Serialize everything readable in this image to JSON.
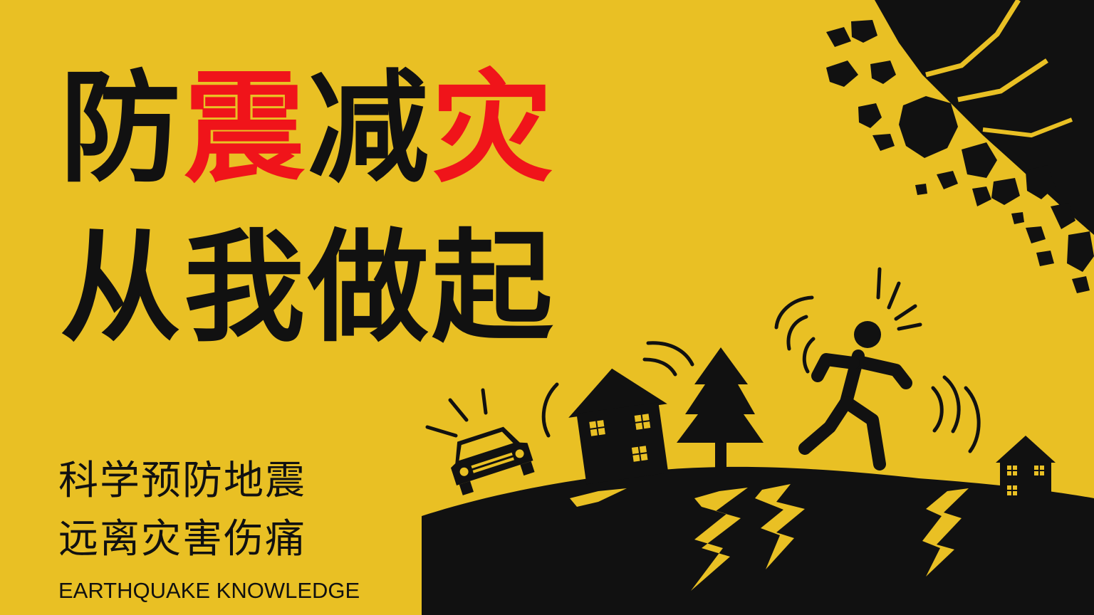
{
  "headline": {
    "line1": [
      "防",
      "震",
      "减",
      "灾"
    ],
    "line1_colors": [
      "#111111",
      "#f0141a",
      "#111111",
      "#f0141a"
    ],
    "line2": "从我做起"
  },
  "subtitles": {
    "line1": "科学预防地震",
    "line2": "远离灾害伤痛"
  },
  "english_caption": "EARTHQUAKE KNOWLEDGE",
  "colors": {
    "background": "#e9c024",
    "ink": "#111111",
    "accent": "#f0141a"
  }
}
